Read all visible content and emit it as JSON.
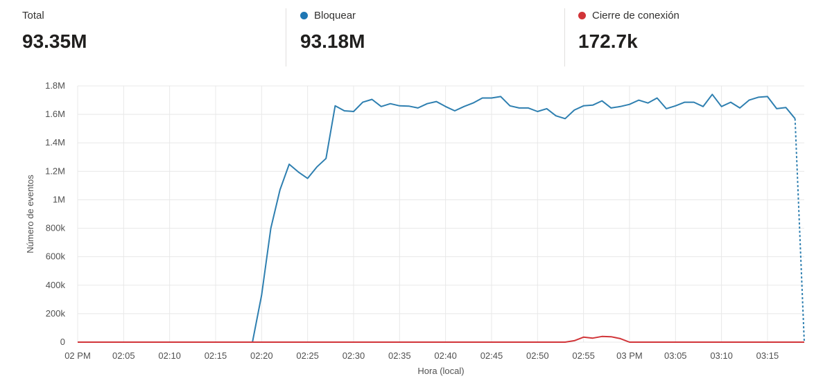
{
  "summary": [
    {
      "label": "Total",
      "value": "93.35M",
      "color": null
    },
    {
      "label": "Bloquear",
      "value": "93.18M",
      "color": "#1f77b4"
    },
    {
      "label": "Cierre de conexión",
      "value": "172.7k",
      "color": "#d13438"
    }
  ],
  "chart_data": {
    "type": "line",
    "title": "",
    "xlabel": "Hora (local)",
    "ylabel": "Número de eventos",
    "x_tick_labels": [
      "02 PM",
      "02:05",
      "02:10",
      "02:15",
      "02:20",
      "02:25",
      "02:30",
      "02:35",
      "02:40",
      "02:45",
      "02:50",
      "02:55",
      "03 PM",
      "03:05",
      "03:10",
      "03:15"
    ],
    "y_tick_labels": [
      "0",
      "200k",
      "400k",
      "600k",
      "800k",
      "1M",
      "1.2M",
      "1.4M",
      "1.6M",
      "1.8M"
    ],
    "y_tick_values": [
      0,
      200000,
      400000,
      600000,
      800000,
      1000000,
      1200000,
      1400000,
      1600000,
      1800000
    ],
    "xlim_minutes": [
      0,
      79
    ],
    "ylim": [
      0,
      1800000
    ],
    "grid": true,
    "series": [
      {
        "name": "Bloquear",
        "color": "#2e7fb0",
        "x_minutes": [
          0,
          1,
          2,
          3,
          4,
          5,
          6,
          7,
          8,
          9,
          10,
          11,
          12,
          13,
          14,
          15,
          16,
          17,
          18,
          19,
          20,
          21,
          22,
          23,
          24,
          25,
          26,
          27,
          28,
          29,
          30,
          31,
          32,
          33,
          34,
          35,
          36,
          37,
          38,
          39,
          40,
          41,
          42,
          43,
          44,
          45,
          46,
          47,
          48,
          49,
          50,
          51,
          52,
          53,
          54,
          55,
          56,
          57,
          58,
          59,
          60,
          61,
          62,
          63,
          64,
          65,
          66,
          67,
          68,
          69,
          70,
          71,
          72,
          73,
          74,
          75,
          76,
          77,
          78
        ],
        "values": [
          0,
          0,
          0,
          0,
          0,
          0,
          0,
          0,
          0,
          0,
          0,
          0,
          0,
          0,
          0,
          0,
          0,
          0,
          0,
          0,
          330000,
          800000,
          1070000,
          1250000,
          1195000,
          1150000,
          1230000,
          1290000,
          1660000,
          1625000,
          1620000,
          1685000,
          1705000,
          1655000,
          1675000,
          1660000,
          1658000,
          1645000,
          1675000,
          1690000,
          1655000,
          1625000,
          1655000,
          1680000,
          1715000,
          1715000,
          1725000,
          1660000,
          1645000,
          1645000,
          1620000,
          1640000,
          1590000,
          1570000,
          1630000,
          1660000,
          1665000,
          1695000,
          1645000,
          1655000,
          1670000,
          1700000,
          1680000,
          1715000,
          1640000,
          1660000,
          1685000,
          1685000,
          1655000,
          1740000,
          1655000,
          1685000,
          1645000,
          1700000,
          1720000,
          1725000,
          1640000,
          1648000,
          1570000
        ],
        "dotted_tail": {
          "x_minutes": [
            78,
            79
          ],
          "values": [
            1570000,
            0
          ]
        }
      },
      {
        "name": "Cierre de conexión",
        "color": "#d13438",
        "x_minutes": [
          0,
          5,
          10,
          15,
          20,
          25,
          30,
          35,
          40,
          45,
          50,
          53,
          54,
          55,
          56,
          57,
          58,
          59,
          60,
          61,
          62,
          65,
          70,
          75,
          79
        ],
        "values": [
          0,
          0,
          0,
          0,
          0,
          0,
          0,
          0,
          0,
          0,
          0,
          0,
          10000,
          35000,
          28000,
          40000,
          38000,
          25000,
          0,
          0,
          0,
          0,
          0,
          0,
          0
        ]
      }
    ]
  }
}
